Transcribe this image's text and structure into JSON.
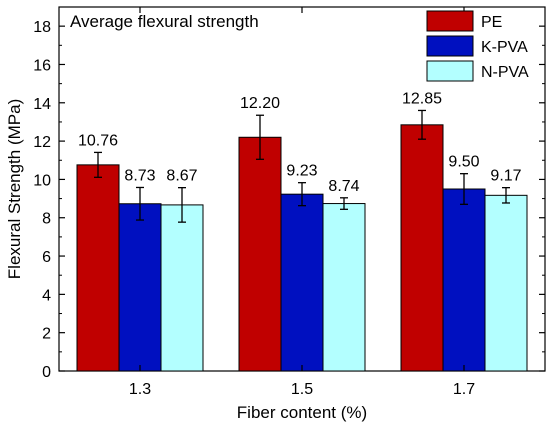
{
  "chart_data": {
    "type": "bar",
    "title": "Average flexural strength",
    "xlabel": "Fiber content (%)",
    "ylabel": "Flexural Strength (MPa)",
    "categories": [
      "1.3",
      "1.5",
      "1.7"
    ],
    "ylim": [
      0,
      19
    ],
    "yticks": [
      "0",
      "2",
      "4",
      "6",
      "8",
      "10",
      "12",
      "14",
      "16",
      "18"
    ],
    "grid": false,
    "legend_position": "top-right",
    "series": [
      {
        "name": "PE",
        "color": "#c00000",
        "values": [
          10.76,
          12.2,
          12.85
        ],
        "labels": [
          "10.76",
          "12.20",
          "12.85"
        ],
        "error": [
          0.65,
          1.15,
          0.75
        ]
      },
      {
        "name": "K-PVA",
        "color": "#0010c0",
        "values": [
          8.73,
          9.23,
          9.5
        ],
        "labels": [
          "8.73",
          "9.23",
          "9.50"
        ],
        "error": [
          0.85,
          0.6,
          0.8
        ]
      },
      {
        "name": "N-PVA",
        "color": "#b3ffff",
        "values": [
          8.67,
          8.74,
          9.17
        ],
        "labels": [
          "8.67",
          "8.74",
          "9.17"
        ],
        "error": [
          0.9,
          0.3,
          0.4
        ]
      }
    ]
  }
}
